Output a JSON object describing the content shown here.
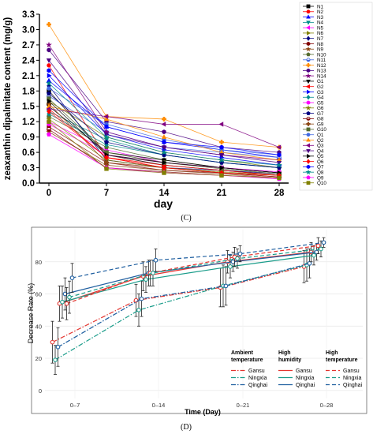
{
  "figure": {
    "panel_c_label": "(C)",
    "panel_d_label": "(D)"
  },
  "chart_data": [
    {
      "type": "line",
      "ylabel": "zeaxanthin dipalmitate content (mg/g)",
      "xlabel": "day",
      "x": [
        0,
        7,
        14,
        21,
        28
      ],
      "xticks": [
        "0",
        "7",
        "14",
        "21",
        "28"
      ],
      "ylim": [
        0,
        3.3
      ],
      "yticks": [
        "0.0",
        "0.3",
        "0.6",
        "0.9",
        "1.2",
        "1.5",
        "1.8",
        "2.1",
        "2.4",
        "2.7",
        "3.0",
        "3.3"
      ],
      "legend_position": "right",
      "series": [
        {
          "name": "N1",
          "color": "#000000",
          "marker": "square",
          "values": [
            1.8,
            0.55,
            0.35,
            0.25,
            0.15
          ]
        },
        {
          "name": "N2",
          "color": "#ff0000",
          "marker": "circle",
          "values": [
            2.3,
            0.5,
            0.3,
            0.2,
            0.12
          ]
        },
        {
          "name": "N3",
          "color": "#0000ff",
          "marker": "triangle-up",
          "values": [
            2.0,
            1.1,
            0.8,
            0.65,
            0.5
          ]
        },
        {
          "name": "N4",
          "color": "#008b8b",
          "marker": "triangle-down",
          "values": [
            1.4,
            0.85,
            0.55,
            0.4,
            0.3
          ]
        },
        {
          "name": "N5",
          "color": "#ff00ff",
          "marker": "triangle-left",
          "values": [
            1.2,
            0.65,
            0.4,
            0.3,
            0.2
          ]
        },
        {
          "name": "N6",
          "color": "#808000",
          "marker": "triangle-right",
          "values": [
            1.6,
            0.9,
            0.6,
            0.45,
            0.3
          ]
        },
        {
          "name": "N7",
          "color": "#000080",
          "marker": "diamond",
          "values": [
            1.9,
            0.45,
            0.3,
            0.25,
            0.18
          ]
        },
        {
          "name": "N8",
          "color": "#800000",
          "marker": "hexagon",
          "values": [
            1.1,
            0.4,
            0.25,
            0.2,
            0.12
          ]
        },
        {
          "name": "N9",
          "color": "#8b4513",
          "marker": "star",
          "values": [
            1.0,
            0.35,
            0.25,
            0.18,
            0.1
          ]
        },
        {
          "name": "N10",
          "color": "#556b2f",
          "marker": "pentagon",
          "values": [
            1.3,
            0.7,
            0.45,
            0.3,
            0.2
          ]
        },
        {
          "name": "N11",
          "color": "#4169e1",
          "marker": "circle-half",
          "values": [
            1.7,
            1.0,
            0.7,
            0.6,
            0.5
          ]
        },
        {
          "name": "N12",
          "color": "#ff8c00",
          "marker": "cross",
          "values": [
            3.1,
            1.3,
            1.25,
            0.8,
            0.7
          ]
        },
        {
          "name": "N13",
          "color": "#4b0082",
          "marker": "hexagon",
          "values": [
            2.6,
            1.2,
            1.0,
            0.7,
            0.6
          ]
        },
        {
          "name": "N14",
          "color": "#800080",
          "marker": "star",
          "values": [
            2.7,
            1.0,
            0.7,
            0.55,
            0.45
          ]
        },
        {
          "name": "G1",
          "color": "#000000",
          "marker": "triangle-down",
          "values": [
            1.5,
            0.6,
            0.45,
            0.3,
            0.2
          ]
        },
        {
          "name": "G2",
          "color": "#ff0000",
          "marker": "triangle-left",
          "values": [
            1.45,
            0.5,
            0.35,
            0.25,
            0.15
          ]
        },
        {
          "name": "G3",
          "color": "#0000ff",
          "marker": "triangle-right",
          "values": [
            2.1,
            0.95,
            0.65,
            0.5,
            0.35
          ]
        },
        {
          "name": "G4",
          "color": "#008b8b",
          "marker": "diamond",
          "values": [
            1.35,
            0.75,
            0.55,
            0.4,
            0.3
          ]
        },
        {
          "name": "G5",
          "color": "#ff00ff",
          "marker": "hexagon",
          "values": [
            1.15,
            0.55,
            0.4,
            0.3,
            0.22
          ]
        },
        {
          "name": "G6",
          "color": "#808000",
          "marker": "star",
          "values": [
            1.25,
            0.45,
            0.3,
            0.22,
            0.15
          ]
        },
        {
          "name": "G7",
          "color": "#000080",
          "marker": "pentagon",
          "values": [
            1.75,
            0.8,
            0.55,
            0.4,
            0.3
          ]
        },
        {
          "name": "G8",
          "color": "#800000",
          "marker": "circle-half",
          "values": [
            1.05,
            0.3,
            0.22,
            0.15,
            0.1
          ]
        },
        {
          "name": "G9",
          "color": "#8b4513",
          "marker": "cross",
          "values": [
            1.55,
            0.4,
            0.3,
            0.2,
            0.15
          ]
        },
        {
          "name": "G10",
          "color": "#556b2f",
          "marker": "square",
          "values": [
            1.65,
            0.6,
            0.4,
            0.28,
            0.18
          ]
        },
        {
          "name": "Q1",
          "color": "#4169e1",
          "marker": "circle",
          "values": [
            1.85,
            1.15,
            0.85,
            0.65,
            0.55
          ]
        },
        {
          "name": "Q2",
          "color": "#ff8c00",
          "marker": "triangle-up",
          "values": [
            1.5,
            1.25,
            0.9,
            0.6,
            0.45
          ]
        },
        {
          "name": "Q3",
          "color": "#800080",
          "marker": "triangle-left",
          "values": [
            1.45,
            1.3,
            1.15,
            1.15,
            0.7
          ]
        },
        {
          "name": "Q4",
          "color": "#4b0082",
          "marker": "triangle-down",
          "values": [
            2.4,
            0.95,
            0.7,
            0.55,
            0.4
          ]
        },
        {
          "name": "Q5",
          "color": "#000000",
          "marker": "triangle-right",
          "values": [
            1.6,
            0.55,
            0.4,
            0.3,
            0.2
          ]
        },
        {
          "name": "Q6",
          "color": "#ff0000",
          "marker": "diamond",
          "values": [
            1.4,
            0.5,
            0.3,
            0.2,
            0.15
          ]
        },
        {
          "name": "Q7",
          "color": "#0000ff",
          "marker": "hexagon",
          "values": [
            2.2,
            1.1,
            0.8,
            0.7,
            0.55
          ]
        },
        {
          "name": "Q8",
          "color": "#008b8b",
          "marker": "star",
          "values": [
            1.95,
            0.9,
            0.6,
            0.45,
            0.35
          ]
        },
        {
          "name": "Q9",
          "color": "#ff00ff",
          "marker": "pentagon",
          "values": [
            0.95,
            0.3,
            0.2,
            0.15,
            0.08
          ]
        },
        {
          "name": "Q10",
          "color": "#808000",
          "marker": "square",
          "values": [
            1.2,
            0.28,
            0.2,
            0.15,
            0.1
          ]
        }
      ]
    },
    {
      "type": "line",
      "ylabel": "Decrease Rate (%)",
      "xlabel": "Time (Day)",
      "categories": [
        "0–7",
        "0–14",
        "0–21",
        "0–28"
      ],
      "ylim": [
        -5,
        100
      ],
      "yticks": [
        0,
        20,
        40,
        60,
        80
      ],
      "grid": true,
      "legend": {
        "position": "bottom-right",
        "groups": [
          {
            "title": "Ambient temperature",
            "line": "dashdot"
          },
          {
            "title": "High humidity",
            "line": "solid"
          },
          {
            "title": "High temperature",
            "line": "dashed"
          }
        ]
      },
      "colors": {
        "Gansu": "#e3342f",
        "Ningxia": "#1a9c8a",
        "Qinghai": "#1f5fa0"
      },
      "series": [
        {
          "name": "Gansu",
          "group": "Ambient temperature",
          "line": "dashdot",
          "marker": "circle-open",
          "values": [
            30,
            56,
            64,
            77
          ],
          "errors": [
            13,
            10,
            12,
            10
          ]
        },
        {
          "name": "Ningxia",
          "group": "Ambient temperature",
          "line": "dashdot",
          "marker": "circle-open",
          "values": [
            19,
            50,
            65,
            78
          ],
          "errors": [
            9,
            10,
            13,
            10
          ]
        },
        {
          "name": "Qinghai",
          "group": "Ambient temperature",
          "line": "dashdot",
          "marker": "circle-open",
          "values": [
            27,
            57,
            65,
            79
          ],
          "errors": [
            12,
            11,
            12,
            9
          ]
        },
        {
          "name": "Gansu",
          "group": "High humidity",
          "line": "solid",
          "marker": "circle-open",
          "values": [
            54,
            71,
            80,
            86
          ],
          "errors": [
            11,
            9,
            7,
            6
          ]
        },
        {
          "name": "Ningxia",
          "group": "High humidity",
          "line": "solid",
          "marker": "circle-open",
          "values": [
            55,
            69,
            77,
            84
          ],
          "errors": [
            10,
            8,
            7,
            6
          ]
        },
        {
          "name": "Qinghai",
          "group": "High humidity",
          "line": "solid",
          "marker": "circle-open",
          "values": [
            60,
            73,
            80,
            86
          ],
          "errors": [
            10,
            8,
            6,
            5
          ]
        },
        {
          "name": "Gansu",
          "group": "High temperature",
          "line": "dashed",
          "marker": "circle-open",
          "values": [
            54,
            73,
            83,
            90
          ],
          "errors": [
            10,
            8,
            6,
            5
          ]
        },
        {
          "name": "Ningxia",
          "group": "High temperature",
          "line": "dashed",
          "marker": "circle-open",
          "values": [
            58,
            73,
            82,
            88
          ],
          "errors": [
            10,
            8,
            6,
            5
          ]
        },
        {
          "name": "Qinghai",
          "group": "High temperature",
          "line": "dashed",
          "marker": "circle-open",
          "values": [
            70,
            81,
            85,
            92
          ],
          "errors": [
            9,
            7,
            5,
            3
          ]
        }
      ]
    }
  ]
}
